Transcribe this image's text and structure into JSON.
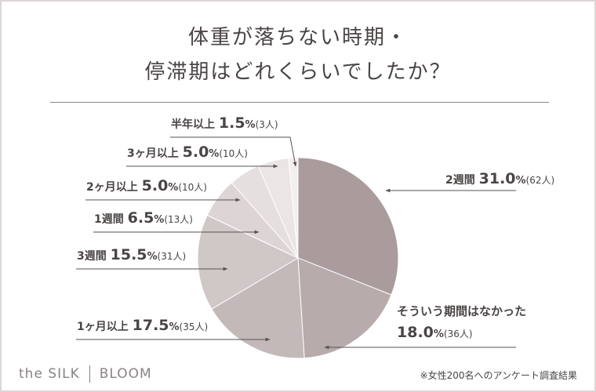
{
  "title_line1": "体重が落ちない時期・",
  "title_line2": "停滞期はどれくらいでしたか？",
  "brand": {
    "left": "the SILK",
    "right": "BLOOM"
  },
  "footnote": "※女性200名へのアンケート調査結果",
  "colors": {
    "text": "#4a4444",
    "arrow": "#5a5252",
    "rule": "#8c8484"
  },
  "chart_data": {
    "type": "pie",
    "title": "体重が落ちない時期・停滞期はどれくらいでしたか？",
    "slices": [
      {
        "label": "2週間",
        "value": 31.0,
        "count": "(62人)",
        "color": "#aa9c9c"
      },
      {
        "label": "そういう期間はなかった",
        "value": 18.0,
        "count": "(36人)",
        "color": "#b7abab"
      },
      {
        "label": "1ヶ月以上",
        "value": 17.5,
        "count": "(35人)",
        "color": "#c3b9b9"
      },
      {
        "label": "3週間",
        "value": 15.5,
        "count": "(31人)",
        "color": "#d0c7c7"
      },
      {
        "label": "1週間",
        "value": 6.5,
        "count": "(13人)",
        "color": "#ddd5d5"
      },
      {
        "label": "2ヶ月以上",
        "value": 5.0,
        "count": "(10人)",
        "color": "#e5dfdf"
      },
      {
        "label": "3ヶ月以上",
        "value": 5.0,
        "count": "(10人)",
        "color": "#ebe6e6"
      },
      {
        "label": "半年以上",
        "value": 1.5,
        "count": "(3人)",
        "color": "#f3efef"
      }
    ],
    "unit": "%"
  }
}
